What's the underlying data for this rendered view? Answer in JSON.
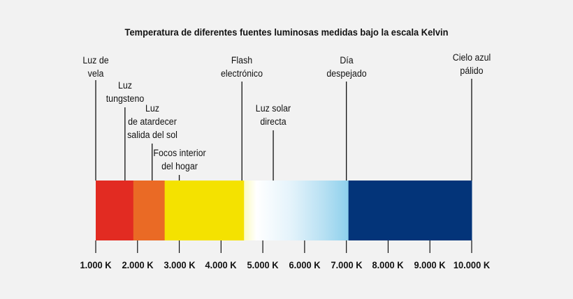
{
  "title": "Temperatura de diferentes fuentes luminosas medidas bajo la escala Kelvin",
  "axis": {
    "min": 1000,
    "max": 10000,
    "ticks": [
      {
        "value": 1000,
        "label": "1.000 K"
      },
      {
        "value": 2000,
        "label": "2.000 K"
      },
      {
        "value": 3000,
        "label": "3.000 K"
      },
      {
        "value": 4000,
        "label": "4.000 K"
      },
      {
        "value": 5000,
        "label": "5.000 K"
      },
      {
        "value": 6000,
        "label": "6.000 K"
      },
      {
        "value": 7000,
        "label": "7.000 K"
      },
      {
        "value": 8000,
        "label": "8.000 K"
      },
      {
        "value": 9000,
        "label": "9.000 K"
      },
      {
        "value": 10000,
        "label": "10.000 K"
      }
    ]
  },
  "spectrum_bands": [
    {
      "from": 1000,
      "to": 1900,
      "color": "#e22b22"
    },
    {
      "from": 1900,
      "to": 2650,
      "color": "#ea6a25"
    },
    {
      "from": 2650,
      "to": 4550,
      "color": "#f4e200"
    },
    {
      "from": 4550,
      "to": 7050,
      "gradient": [
        "#fbfbc0",
        "#ffffff",
        "#e4f3fb",
        "#b9e1f3",
        "#8dd0ec"
      ]
    },
    {
      "from": 7050,
      "to": 10000,
      "color": "#033479"
    }
  ],
  "light_sources": [
    {
      "name": "candle",
      "label": "Luz de\nvela",
      "kelvin": 1000
    },
    {
      "name": "tungsten",
      "label": "Luz\ntungsteno",
      "kelvin": 1700
    },
    {
      "name": "sunset",
      "label": "Luz\nde atardecer\nsalida del sol",
      "kelvin": 2350
    },
    {
      "name": "home-bulbs",
      "label": "Focos interior\ndel hogar",
      "kelvin": 3000
    },
    {
      "name": "flash",
      "label": "Flash\nelectrónico",
      "kelvin": 4500
    },
    {
      "name": "sunlight",
      "label": "Luz solar\ndirecta",
      "kelvin": 5250
    },
    {
      "name": "clear-day",
      "label": "Día\ndespejado",
      "kelvin": 7000
    },
    {
      "name": "pale-blue-sky",
      "label": "Cielo azul\npálido",
      "kelvin": 10000
    }
  ]
}
